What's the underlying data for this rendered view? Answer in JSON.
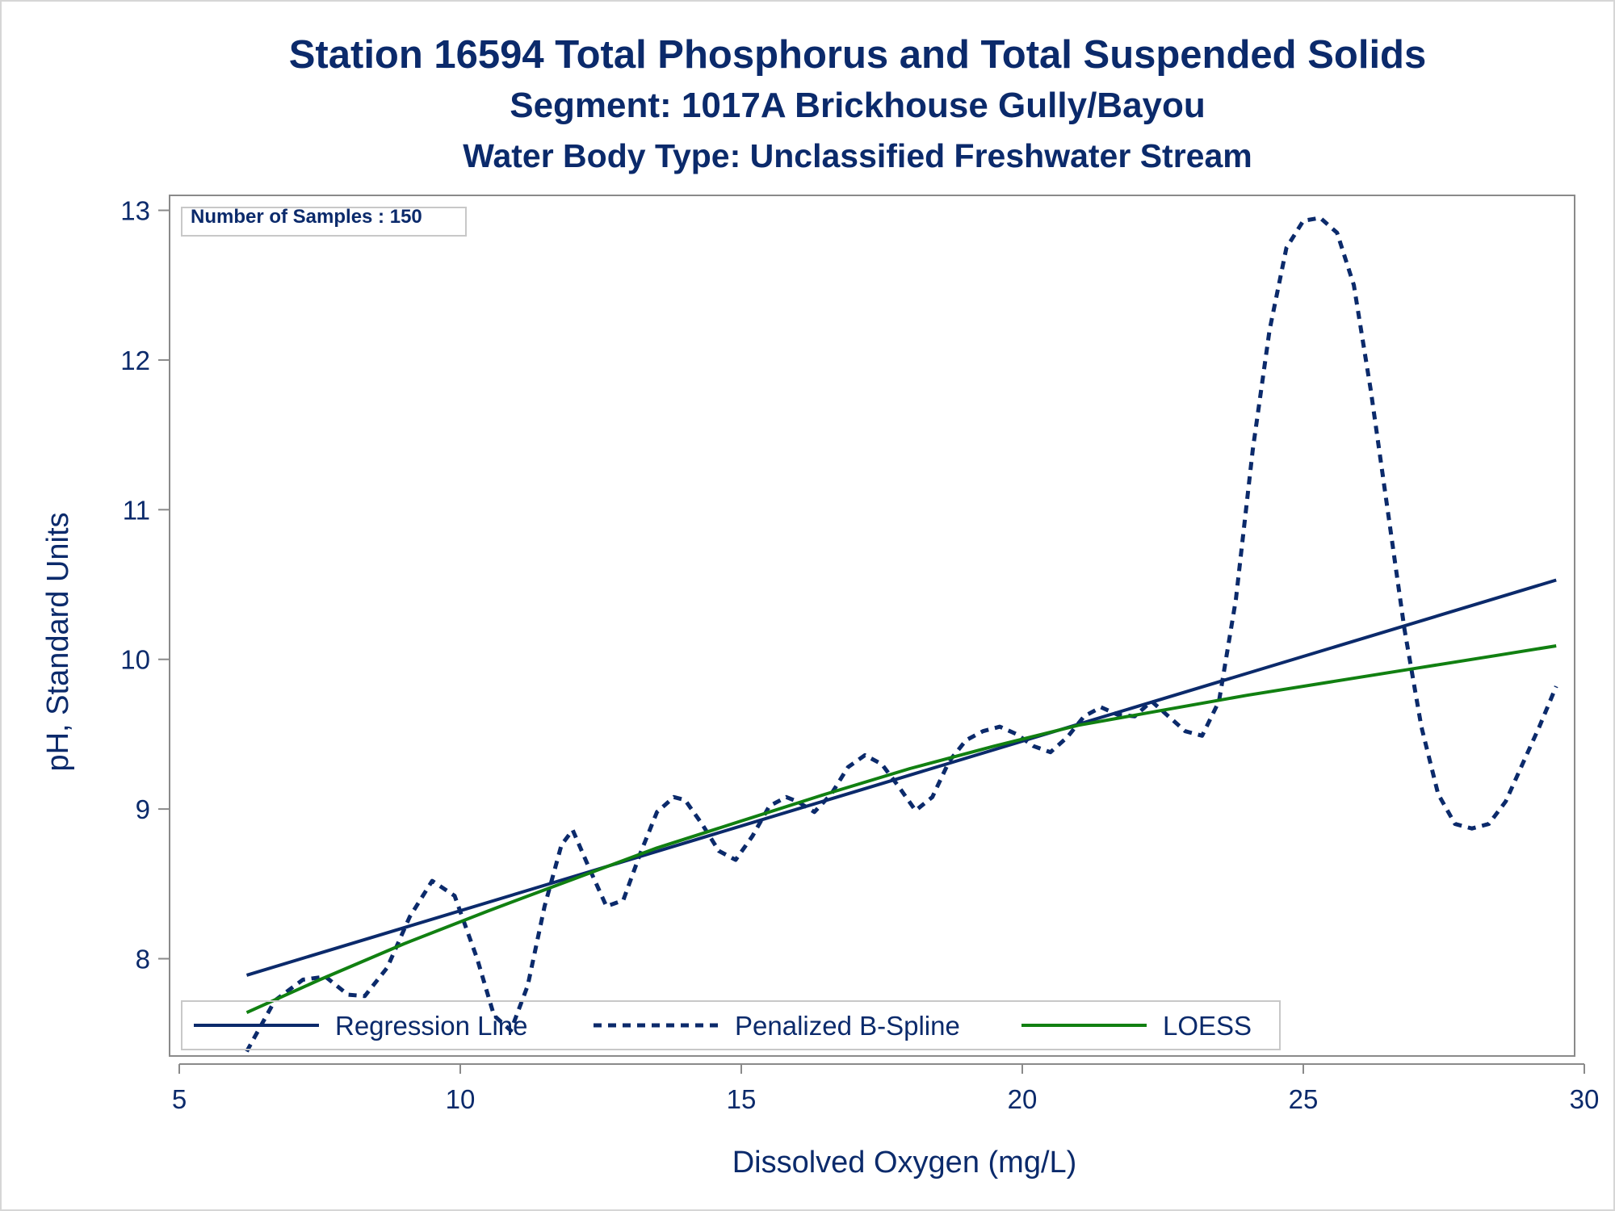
{
  "titles": {
    "line1": "Station 16594  Total Phosphorus and Total Suspended Solids",
    "line2": "Segment: 1017A  Brickhouse Gully/Bayou",
    "line3": "Water Body Type: Unclassified Freshwater Stream"
  },
  "inset": {
    "samples_label": "Number of Samples : 150"
  },
  "colors": {
    "text": "#0b2a6b",
    "regression": "#0b2a6b",
    "spline": "#0b2a6b",
    "loess": "#118011",
    "axis": "#8a8a8a"
  },
  "chart_data": {
    "type": "line",
    "xlabel": "Dissolved Oxygen (mg/L)",
    "ylabel": "pH, Standard Units",
    "xlim": [
      5,
      30
    ],
    "ylim": [
      7.35,
      13.1
    ],
    "xticks": [
      5,
      10,
      15,
      20,
      25,
      30
    ],
    "yticks": [
      8,
      9,
      10,
      11,
      12,
      13
    ],
    "grid": false,
    "legend_position": "bottom inside",
    "series": [
      {
        "name": "Regression Line",
        "style": "solid",
        "x": [
          6.2,
          29.5
        ],
        "y": [
          7.89,
          10.53
        ]
      },
      {
        "name": "Penalized B-Spline",
        "style": "dashed",
        "x": [
          6.2,
          6.7,
          7.2,
          7.6,
          8.0,
          8.3,
          8.7,
          9.1,
          9.5,
          9.9,
          10.3,
          10.6,
          10.9,
          11.2,
          11.5,
          11.8,
          12.0,
          12.3,
          12.6,
          12.9,
          13.2,
          13.5,
          13.8,
          14.0,
          14.3,
          14.6,
          14.9,
          15.2,
          15.5,
          15.8,
          16.0,
          16.3,
          16.6,
          16.9,
          17.2,
          17.5,
          17.8,
          18.1,
          18.4,
          18.7,
          19.0,
          19.3,
          19.6,
          19.9,
          20.2,
          20.5,
          20.8,
          21.1,
          21.4,
          21.7,
          22.0,
          22.3,
          22.6,
          22.9,
          23.2,
          23.5,
          23.8,
          24.1,
          24.4,
          24.7,
          25.0,
          25.3,
          25.6,
          25.9,
          26.2,
          26.5,
          26.8,
          27.1,
          27.4,
          27.7,
          28.0,
          28.3,
          28.6,
          28.9,
          29.2,
          29.5
        ],
        "y": [
          7.38,
          7.72,
          7.86,
          7.88,
          7.76,
          7.75,
          7.94,
          8.28,
          8.52,
          8.42,
          8.0,
          7.62,
          7.52,
          7.82,
          8.35,
          8.76,
          8.86,
          8.6,
          8.35,
          8.39,
          8.7,
          8.98,
          9.08,
          9.06,
          8.9,
          8.72,
          8.66,
          8.82,
          9.02,
          9.08,
          9.05,
          8.98,
          9.1,
          9.28,
          9.36,
          9.3,
          9.15,
          8.99,
          9.08,
          9.32,
          9.46,
          9.52,
          9.55,
          9.5,
          9.42,
          9.38,
          9.48,
          9.62,
          9.68,
          9.63,
          9.62,
          9.72,
          9.62,
          9.52,
          9.49,
          9.72,
          10.4,
          11.4,
          12.2,
          12.75,
          12.93,
          12.95,
          12.85,
          12.5,
          11.8,
          11.0,
          10.2,
          9.55,
          9.1,
          8.9,
          8.87,
          8.9,
          9.05,
          9.3,
          9.55,
          9.82
        ]
      },
      {
        "name": "LOESS",
        "style": "solid",
        "x": [
          6.2,
          7.5,
          9.0,
          10.5,
          12.0,
          13.5,
          15.0,
          16.5,
          18.0,
          19.5,
          21.0,
          22.5,
          24.0,
          25.5,
          27.0,
          28.5,
          29.5
        ],
        "y": [
          7.64,
          7.86,
          8.1,
          8.32,
          8.53,
          8.74,
          8.92,
          9.1,
          9.27,
          9.42,
          9.56,
          9.66,
          9.76,
          9.85,
          9.94,
          10.03,
          10.09
        ]
      }
    ]
  }
}
